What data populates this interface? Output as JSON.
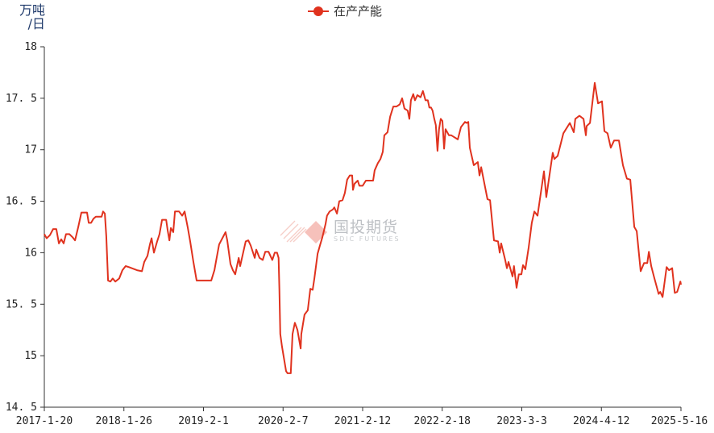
{
  "chart_data": {
    "type": "line",
    "title": "",
    "ylabel": "万吨/日",
    "xlabel": "",
    "ylim": [
      14.5,
      18
    ],
    "yticks": [
      "14.5",
      "15",
      "15.5",
      "16",
      "16.5",
      "17",
      "17.5",
      "18"
    ],
    "xticks": [
      "2017-1-20",
      "2018-1-26",
      "2019-2-1",
      "2020-2-7",
      "2021-2-12",
      "2022-2-18",
      "2023-3-3",
      "2024-4-12",
      "2025-5-16"
    ],
    "grid": false,
    "legend": "top-center",
    "series": [
      {
        "name": "在产产能",
        "color": "#e0321e",
        "marker": "circle",
        "points": [
          [
            "2017-01-20",
            16.18
          ],
          [
            "2017-01-31",
            16.14
          ],
          [
            "2017-02-15",
            16.17
          ],
          [
            "2017-03-02",
            16.23
          ],
          [
            "2017-03-17",
            16.23
          ],
          [
            "2017-03-29",
            16.09
          ],
          [
            "2017-04-09",
            16.13
          ],
          [
            "2017-04-20",
            16.09
          ],
          [
            "2017-05-01",
            16.18
          ],
          [
            "2017-05-17",
            16.18
          ],
          [
            "2017-06-01",
            16.15
          ],
          [
            "2017-06-12",
            16.12
          ],
          [
            "2017-06-27",
            16.25
          ],
          [
            "2017-07-12",
            16.39
          ],
          [
            "2017-08-07",
            16.39
          ],
          [
            "2017-08-15",
            16.29
          ],
          [
            "2017-08-26",
            16.29
          ],
          [
            "2017-09-06",
            16.33
          ],
          [
            "2017-09-17",
            16.35
          ],
          [
            "2017-10-14",
            16.35
          ],
          [
            "2017-10-21",
            16.4
          ],
          [
            "2017-10-29",
            16.38
          ],
          [
            "2017-11-05",
            16.16
          ],
          [
            "2017-11-13",
            15.73
          ],
          [
            "2017-11-24",
            15.72
          ],
          [
            "2017-12-05",
            15.75
          ],
          [
            "2017-12-17",
            15.72
          ],
          [
            "2018-01-04",
            15.75
          ],
          [
            "2018-01-19",
            15.83
          ],
          [
            "2018-02-03",
            15.87
          ],
          [
            "2018-02-19",
            15.86
          ],
          [
            "2018-03-28",
            15.83
          ],
          [
            "2018-04-20",
            15.82
          ],
          [
            "2018-05-01",
            15.91
          ],
          [
            "2018-05-16",
            15.97
          ],
          [
            "2018-05-27",
            16.08
          ],
          [
            "2018-06-04",
            16.14
          ],
          [
            "2018-06-15",
            16.0
          ],
          [
            "2018-06-30",
            16.11
          ],
          [
            "2018-07-11",
            16.18
          ],
          [
            "2018-07-23",
            16.32
          ],
          [
            "2018-08-11",
            16.32
          ],
          [
            "2018-08-18",
            16.22
          ],
          [
            "2018-08-26",
            16.12
          ],
          [
            "2018-09-02",
            16.24
          ],
          [
            "2018-09-13",
            16.2
          ],
          [
            "2018-09-21",
            16.4
          ],
          [
            "2018-10-10",
            16.4
          ],
          [
            "2018-10-25",
            16.36
          ],
          [
            "2018-11-05",
            16.4
          ],
          [
            "2018-11-20",
            16.24
          ],
          [
            "2018-12-01",
            16.11
          ],
          [
            "2018-12-16",
            15.91
          ],
          [
            "2018-12-31",
            15.73
          ],
          [
            "2019-03-09",
            15.73
          ],
          [
            "2019-03-24",
            15.83
          ],
          [
            "2019-03-31",
            15.91
          ],
          [
            "2019-04-15",
            16.08
          ],
          [
            "2019-04-30",
            16.14
          ],
          [
            "2019-05-15",
            16.2
          ],
          [
            "2019-05-23",
            16.12
          ],
          [
            "2019-06-07",
            15.89
          ],
          [
            "2019-06-18",
            15.83
          ],
          [
            "2019-06-29",
            15.79
          ],
          [
            "2019-07-15",
            15.95
          ],
          [
            "2019-07-22",
            15.87
          ],
          [
            "2019-08-06",
            16.01
          ],
          [
            "2019-08-17",
            16.11
          ],
          [
            "2019-08-29",
            16.12
          ],
          [
            "2019-09-09",
            16.07
          ],
          [
            "2019-09-28",
            15.95
          ],
          [
            "2019-10-05",
            16.03
          ],
          [
            "2019-10-20",
            15.95
          ],
          [
            "2019-11-04",
            15.93
          ],
          [
            "2019-11-16",
            16.01
          ],
          [
            "2019-12-01",
            16.01
          ],
          [
            "2019-12-19",
            15.93
          ],
          [
            "2019-12-30",
            16.0
          ],
          [
            "2020-01-10",
            16.0
          ],
          [
            "2020-01-17",
            15.95
          ],
          [
            "2020-01-21",
            15.64
          ],
          [
            "2020-01-25",
            15.21
          ],
          [
            "2020-02-02",
            15.09
          ],
          [
            "2020-02-21",
            14.85
          ],
          [
            "2020-02-28",
            14.83
          ],
          [
            "2020-03-14",
            14.83
          ],
          [
            "2020-03-22",
            15.21
          ],
          [
            "2020-04-02",
            15.32
          ],
          [
            "2020-04-14",
            15.25
          ],
          [
            "2020-04-29",
            15.07
          ],
          [
            "2020-05-02",
            15.21
          ],
          [
            "2020-05-17",
            15.4
          ],
          [
            "2020-06-01",
            15.44
          ],
          [
            "2020-06-13",
            15.65
          ],
          [
            "2020-06-24",
            15.64
          ],
          [
            "2020-07-02",
            15.75
          ],
          [
            "2020-07-17",
            15.99
          ],
          [
            "2020-07-28",
            16.07
          ],
          [
            "2020-08-08",
            16.15
          ],
          [
            "2020-08-23",
            16.28
          ],
          [
            "2020-08-30",
            16.36
          ],
          [
            "2020-09-11",
            16.4
          ],
          [
            "2020-09-26",
            16.42
          ],
          [
            "2020-10-03",
            16.44
          ],
          [
            "2020-10-15",
            16.38
          ],
          [
            "2020-10-26",
            16.5
          ],
          [
            "2020-11-10",
            16.51
          ],
          [
            "2020-11-21",
            16.58
          ],
          [
            "2020-12-02",
            16.71
          ],
          [
            "2020-12-14",
            16.75
          ],
          [
            "2020-12-25",
            16.75
          ],
          [
            "2020-12-29",
            16.61
          ],
          [
            "2021-01-05",
            16.67
          ],
          [
            "2021-01-20",
            16.7
          ],
          [
            "2021-01-28",
            16.65
          ],
          [
            "2021-02-12",
            16.65
          ],
          [
            "2021-02-27",
            16.7
          ],
          [
            "2021-04-02",
            16.7
          ],
          [
            "2021-04-09",
            16.8
          ],
          [
            "2021-04-24",
            16.87
          ],
          [
            "2021-05-06",
            16.91
          ],
          [
            "2021-05-17",
            16.98
          ],
          [
            "2021-05-24",
            17.14
          ],
          [
            "2021-06-08",
            17.17
          ],
          [
            "2021-06-20",
            17.32
          ],
          [
            "2021-07-05",
            17.42
          ],
          [
            "2021-07-20",
            17.42
          ],
          [
            "2021-08-04",
            17.44
          ],
          [
            "2021-08-15",
            17.5
          ],
          [
            "2021-08-26",
            17.4
          ],
          [
            "2021-09-10",
            17.38
          ],
          [
            "2021-09-18",
            17.3
          ],
          [
            "2021-09-25",
            17.48
          ],
          [
            "2021-10-06",
            17.54
          ],
          [
            "2021-10-14",
            17.48
          ],
          [
            "2021-10-25",
            17.53
          ],
          [
            "2021-11-09",
            17.51
          ],
          [
            "2021-11-20",
            17.57
          ],
          [
            "2021-12-02",
            17.48
          ],
          [
            "2021-12-13",
            17.48
          ],
          [
            "2021-12-20",
            17.41
          ],
          [
            "2021-12-28",
            17.41
          ],
          [
            "2022-01-04",
            17.38
          ],
          [
            "2022-01-12",
            17.3
          ],
          [
            "2022-01-19",
            17.24
          ],
          [
            "2022-01-27",
            16.99
          ],
          [
            "2022-02-03",
            17.2
          ],
          [
            "2022-02-11",
            17.3
          ],
          [
            "2022-02-19",
            17.28
          ],
          [
            "2022-02-27",
            17.01
          ],
          [
            "2022-03-06",
            17.2
          ],
          [
            "2022-03-22",
            17.14
          ],
          [
            "2022-04-02",
            17.14
          ],
          [
            "2022-05-03",
            17.1
          ],
          [
            "2022-05-18",
            17.22
          ],
          [
            "2022-06-06",
            17.27
          ],
          [
            "2022-06-14",
            17.26
          ],
          [
            "2022-06-22",
            17.27
          ],
          [
            "2022-06-29",
            17.02
          ],
          [
            "2022-07-18",
            16.85
          ],
          [
            "2022-08-06",
            16.88
          ],
          [
            "2022-08-14",
            16.75
          ],
          [
            "2022-08-22",
            16.83
          ],
          [
            "2022-09-21",
            16.52
          ],
          [
            "2022-10-03",
            16.51
          ],
          [
            "2022-10-22",
            16.12
          ],
          [
            "2022-11-10",
            16.11
          ],
          [
            "2022-11-18",
            16.0
          ],
          [
            "2022-11-25",
            16.09
          ],
          [
            "2022-12-14",
            15.93
          ],
          [
            "2022-12-22",
            15.85
          ],
          [
            "2022-12-30",
            15.91
          ],
          [
            "2023-01-18",
            15.77
          ],
          [
            "2023-01-25",
            15.87
          ],
          [
            "2023-02-06",
            15.66
          ],
          [
            "2023-02-17",
            15.79
          ],
          [
            "2023-03-01",
            15.79
          ],
          [
            "2023-03-09",
            15.88
          ],
          [
            "2023-03-21",
            15.84
          ],
          [
            "2023-04-07",
            16.05
          ],
          [
            "2023-04-23",
            16.29
          ],
          [
            "2023-05-06",
            16.4
          ],
          [
            "2023-05-22",
            16.36
          ],
          [
            "2023-06-24",
            16.79
          ],
          [
            "2023-07-06",
            16.54
          ],
          [
            "2023-08-08",
            16.97
          ],
          [
            "2023-08-16",
            16.91
          ],
          [
            "2023-09-02",
            16.94
          ],
          [
            "2023-10-01",
            17.16
          ],
          [
            "2023-11-03",
            17.26
          ],
          [
            "2023-11-23",
            17.17
          ],
          [
            "2023-12-01",
            17.3
          ],
          [
            "2023-12-22",
            17.33
          ],
          [
            "2024-01-12",
            17.3
          ],
          [
            "2024-01-24",
            17.14
          ],
          [
            "2024-01-28",
            17.23
          ],
          [
            "2024-02-14",
            17.26
          ],
          [
            "2024-03-09",
            17.65
          ],
          [
            "2024-03-26",
            17.45
          ],
          [
            "2024-04-15",
            17.47
          ],
          [
            "2024-04-27",
            17.18
          ],
          [
            "2024-05-13",
            17.16
          ],
          [
            "2024-05-29",
            17.02
          ],
          [
            "2024-06-15",
            17.09
          ],
          [
            "2024-07-09",
            17.09
          ],
          [
            "2024-07-29",
            16.85
          ],
          [
            "2024-08-18",
            16.72
          ],
          [
            "2024-09-04",
            16.71
          ],
          [
            "2024-09-24",
            16.25
          ],
          [
            "2024-10-06",
            16.21
          ],
          [
            "2024-10-26",
            15.82
          ],
          [
            "2024-11-12",
            15.9
          ],
          [
            "2024-11-28",
            15.9
          ],
          [
            "2024-12-06",
            16.01
          ],
          [
            "2024-12-18",
            15.87
          ],
          [
            "2025-01-03",
            15.75
          ],
          [
            "2025-01-24",
            15.6
          ],
          [
            "2025-02-01",
            15.62
          ],
          [
            "2025-02-13",
            15.57
          ],
          [
            "2025-03-05",
            15.86
          ],
          [
            "2025-03-17",
            15.83
          ],
          [
            "2025-04-02",
            15.85
          ],
          [
            "2025-04-15",
            15.61
          ],
          [
            "2025-04-27",
            15.62
          ],
          [
            "2025-05-13",
            15.72
          ],
          [
            "2025-05-16",
            15.69
          ]
        ]
      }
    ]
  },
  "unit_label": {
    "line1": "万吨",
    "line2": "/日"
  },
  "watermark": {
    "cn": "国投期货",
    "en": "SDIC FUTURES"
  }
}
